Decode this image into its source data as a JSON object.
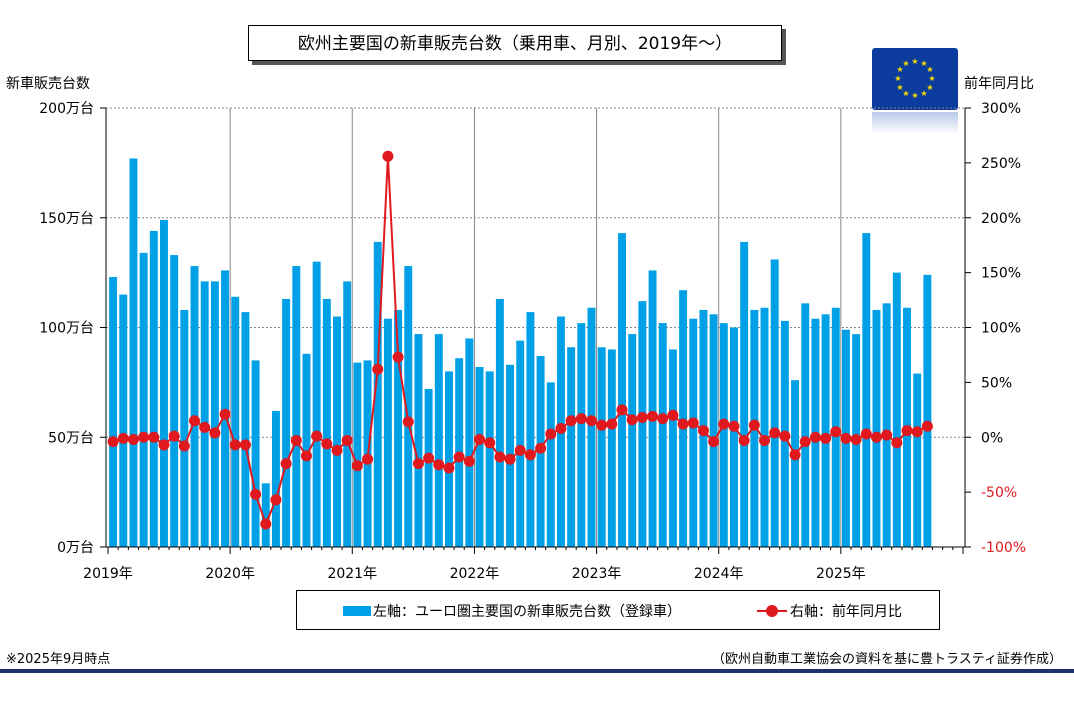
{
  "chart_data": {
    "type": "bar+line",
    "title": "欧州主要国の新車販売台数（乗用車、月別、2019年～）",
    "left_axis_title": "新車販売台数",
    "right_axis_title": "前年同月比",
    "left_ylim": [
      0,
      200
    ],
    "right_ylim": [
      -100,
      300
    ],
    "left_ticks": [
      "0万台",
      "50万台",
      "100万台",
      "150万台",
      "200万台"
    ],
    "right_ticks": [
      "-100%",
      "-50%",
      "0%",
      "50%",
      "100%",
      "150%",
      "200%",
      "250%",
      "300%"
    ],
    "year_labels": [
      "2019年",
      "2020年",
      "2021年",
      "2022年",
      "2023年",
      "2024年",
      "2025年"
    ],
    "series": [
      {
        "name": "左軸：ユーロ圏主要国の新車販売台数（登録車）",
        "type": "bar",
        "color": "#00a0e6",
        "unit": "万台",
        "values": [
          123,
          115,
          177,
          134,
          144,
          149,
          133,
          108,
          128,
          121,
          121,
          126,
          114,
          107,
          85,
          29,
          62,
          113,
          128,
          88,
          130,
          113,
          105,
          121,
          84,
          85,
          139,
          104,
          108,
          128,
          97,
          72,
          97,
          80,
          86,
          95,
          82,
          80,
          113,
          83,
          94,
          107,
          87,
          75,
          105,
          91,
          102,
          109,
          91,
          90,
          143,
          97,
          112,
          126,
          102,
          90,
          117,
          104,
          108,
          106,
          102,
          100,
          139,
          108,
          109,
          131,
          103,
          76,
          111,
          104,
          106,
          109,
          99,
          97,
          143,
          108,
          111,
          125,
          109,
          79,
          124
        ]
      },
      {
        "name": "右軸：前年同月比",
        "type": "line",
        "color": "#e0191e",
        "unit": "%",
        "values": [
          -4,
          -1,
          -2,
          0,
          0,
          -7,
          1,
          -8,
          15,
          9,
          4,
          21,
          -7,
          -7,
          -52,
          -79,
          -57,
          -24,
          -3,
          -17,
          1,
          -6,
          -12,
          -3,
          -26,
          -20,
          62,
          256,
          73,
          14,
          -24,
          -19,
          -25,
          -28,
          -18,
          -22,
          -2,
          -5,
          -18,
          -20,
          -12,
          -16,
          -10,
          3,
          8,
          15,
          17,
          15,
          11,
          12,
          25,
          16,
          18,
          19,
          17,
          20,
          12,
          13,
          6,
          -4,
          12,
          10,
          -3,
          11,
          -3,
          4,
          1,
          -16,
          -4,
          0,
          -1,
          5,
          -1,
          -2,
          3,
          0,
          2,
          -5,
          6,
          5,
          10
        ]
      }
    ]
  },
  "footnote": "※2025年9月時点",
  "source": "（欧州自動車工業協会の資料を基に豊トラスティ証券作成）"
}
